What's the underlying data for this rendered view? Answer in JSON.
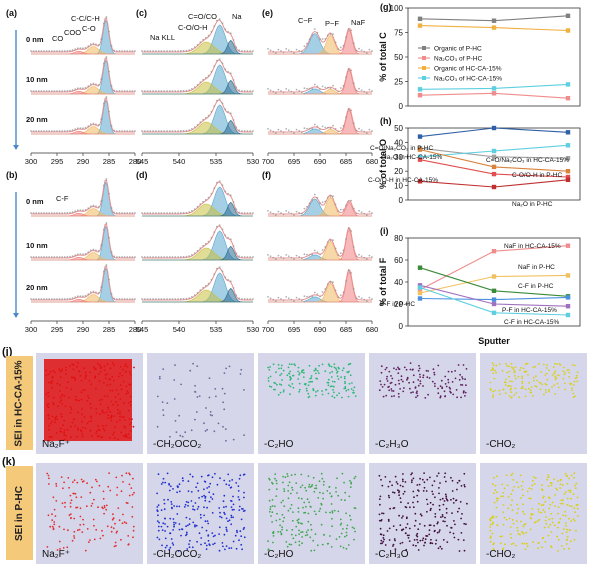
{
  "panel_labels": {
    "a": "(a)",
    "b": "(b)",
    "c": "(c)",
    "d": "(d)",
    "e": "(e)",
    "f": "(f)",
    "g": "(g)",
    "h": "(h)",
    "i": "(i)",
    "j": "(j)",
    "k": "(k)"
  },
  "depths": [
    "0 nm",
    "10 nm",
    "20 nm"
  ],
  "xps_axes": {
    "c1s_ticks": [
      "300",
      "295",
      "290",
      "285",
      "280"
    ],
    "o1s_ticks": [
      "545",
      "540",
      "535",
      "530"
    ],
    "f1s_ticks": [
      "700",
      "695",
      "690",
      "685",
      "680"
    ]
  },
  "c1s_annotations_a": [
    "C-C/C-H",
    "C-O",
    "COO",
    "CO"
  ],
  "c1s_annotations_b": [
    "C-F"
  ],
  "o1s_annotations": [
    "C=O/CO",
    "Na",
    "C-O/O-H",
    "Na KLL"
  ],
  "f1s_annotations": [
    "C−F",
    "P−F",
    "NaF"
  ],
  "chart_data": [
    {
      "type": "line",
      "panel": "g",
      "ylabel": "% of total C",
      "ylim": [
        0,
        100
      ],
      "yticks": [
        "0",
        "25",
        "50",
        "75",
        "100"
      ],
      "x": [
        0,
        10,
        20
      ],
      "series": [
        {
          "name": "Organic of P-HC",
          "color": "#808080",
          "values": [
            89,
            87,
            92
          ]
        },
        {
          "name": "Na₂CO₃ of P-HC",
          "color": "#f08c8c",
          "values": [
            11,
            13,
            8
          ]
        },
        {
          "name": "Organic of HC-CA-15%",
          "color": "#f0b040",
          "values": [
            82,
            80,
            77
          ]
        },
        {
          "name": "Na₂CO₃ of HC-CA-15%",
          "color": "#5ecfe0",
          "values": [
            17,
            18,
            22
          ]
        }
      ],
      "legend": "center"
    },
    {
      "type": "line",
      "panel": "h",
      "ylabel": "% of total O",
      "ylim": [
        0,
        50
      ],
      "yticks": [
        "0",
        "10",
        "20",
        "30",
        "40",
        "50"
      ],
      "x": [
        0,
        10,
        20
      ],
      "series": [
        {
          "name": "C=O/Na₂CO₃ in P-HC",
          "color": "#2f5fa6",
          "values": [
            44,
            50,
            47
          ]
        },
        {
          "name": "Na₂O in HC-CA-15%",
          "color": "#a0a0a0",
          "values": [
            36,
            30,
            29
          ]
        },
        {
          "name": "C=O/Na₂CO₃ in HC-CA-15%",
          "color": "#5ecfe0",
          "values": [
            30,
            34,
            38
          ]
        },
        {
          "name": "C-O/O-H in P-HC",
          "color": "#d9823a",
          "values": [
            35,
            23,
            20
          ]
        },
        {
          "name": "C-O/O-H in HC-CA-15%",
          "color": "#e05050",
          "values": [
            28,
            18,
            16
          ]
        },
        {
          "name": "Na₂O in P-HC",
          "color": "#c03030",
          "values": [
            13,
            9,
            14
          ]
        }
      ]
    },
    {
      "type": "line",
      "panel": "i",
      "ylabel": "% of total F",
      "xlabel": "Sputter",
      "ylim": [
        0,
        80
      ],
      "yticks": [
        "0",
        "20",
        "40",
        "60",
        "80"
      ],
      "x": [
        0,
        10,
        20
      ],
      "series": [
        {
          "name": "NaF in HC-CA-15%",
          "color": "#f08c8c",
          "values": [
            33,
            68,
            73
          ]
        },
        {
          "name": "NaF in P-HC",
          "color": "#f0c060",
          "values": [
            30,
            45,
            46
          ]
        },
        {
          "name": "C-F in P-HC",
          "color": "#3a8a3a",
          "values": [
            53,
            32,
            27
          ]
        },
        {
          "name": "P-F in P-HC",
          "color": "#4a90e0",
          "values": [
            25,
            24,
            26
          ]
        },
        {
          "name": "P-F in HC-CA-15%",
          "color": "#a070c0",
          "values": [
            37,
            20,
            18
          ]
        },
        {
          "name": "C-F in HC-CA-15%",
          "color": "#5ecfe0",
          "values": [
            35,
            12,
            10
          ]
        }
      ]
    }
  ],
  "tof_rows": [
    {
      "tag": "SEI in HC-CA-15%",
      "label": "(j)",
      "tiles": [
        {
          "name": "Na₂F⁺",
          "color": "#e01010",
          "density": 1.0
        },
        {
          "name": "-CH₂OCO₂",
          "color": "#6a6a9a",
          "density": 0.15
        },
        {
          "name": "-C₂HO",
          "color": "#30b878",
          "density": 0.55
        },
        {
          "name": "-C₂H₃O",
          "color": "#602060",
          "density": 0.45
        },
        {
          "name": "-CHO₂",
          "color": "#d8d020",
          "density": 0.55
        }
      ]
    },
    {
      "tag": "SEI in P-HC",
      "label": "(k)",
      "tiles": [
        {
          "name": "Na₂F⁺",
          "color": "#e03030",
          "density": 0.5
        },
        {
          "name": "-CH₂OCO₂",
          "color": "#2030d0",
          "density": 0.85
        },
        {
          "name": "-C₂HO",
          "color": "#40a850",
          "density": 0.75
        },
        {
          "name": "-C₂H₃O",
          "color": "#401040",
          "density": 0.85
        },
        {
          "name": "-CHO₂",
          "color": "#d8d010",
          "density": 0.9
        }
      ]
    }
  ],
  "colors": {
    "peak_blue": "#5aa7cf",
    "peak_orange": "#f0b860",
    "peak_pink": "#f08080",
    "peak_olive": "#c8c040",
    "envelope": "#e89090",
    "raw": "#909090",
    "tag_bg": "#f5c97a",
    "tile_bg": "#d6d6ea"
  }
}
